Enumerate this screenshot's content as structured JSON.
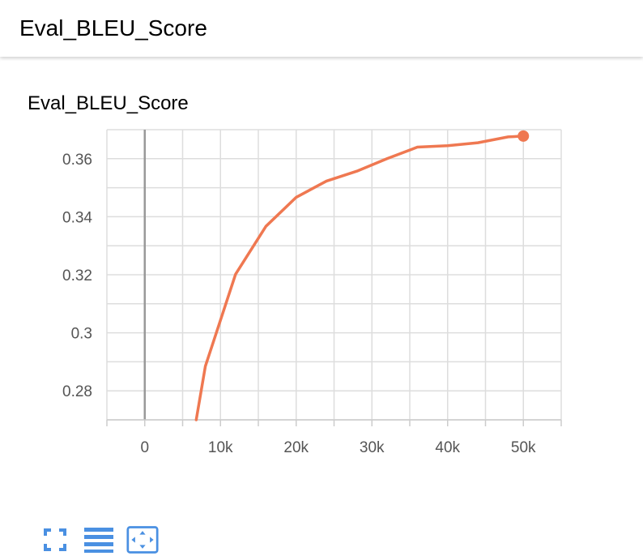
{
  "header": {
    "title": "Eval_BLEU_Score"
  },
  "card": {
    "title": "Eval_BLEU_Score"
  },
  "toolbar": {
    "buttons": [
      {
        "name": "fullscreen-button",
        "icon": "fullscreen-icon"
      },
      {
        "name": "toggle-y-log-button",
        "icon": "list-lines-icon"
      },
      {
        "name": "fit-domain-button",
        "icon": "fit-to-data-icon"
      }
    ],
    "accent_color": "#4a90e2"
  },
  "chart_data": {
    "type": "line",
    "title": "Eval_BLEU_Score",
    "xlabel": "",
    "ylabel": "",
    "xlim": [
      -5000,
      55000
    ],
    "ylim": [
      0.27,
      0.37
    ],
    "x_ticks": [
      0,
      10000,
      20000,
      30000,
      40000,
      50000
    ],
    "x_tick_labels": [
      "0",
      "10k",
      "20k",
      "30k",
      "40k",
      "50k"
    ],
    "y_ticks": [
      0.28,
      0.3,
      0.32,
      0.34,
      0.36
    ],
    "y_tick_labels": [
      "0.28",
      "0.3",
      "0.32",
      "0.34",
      "0.36"
    ],
    "grid": true,
    "line_color": "#ef7851",
    "series": [
      {
        "name": "",
        "x": [
          6800,
          8000,
          12000,
          16000,
          20000,
          24000,
          28000,
          32000,
          36000,
          40000,
          44000,
          48000,
          50000
        ],
        "y": [
          0.27,
          0.2885,
          0.3202,
          0.3367,
          0.3467,
          0.3523,
          0.3557,
          0.36,
          0.364,
          0.3645,
          0.3655,
          0.3675,
          0.3678
        ],
        "end_marker": true
      }
    ]
  }
}
